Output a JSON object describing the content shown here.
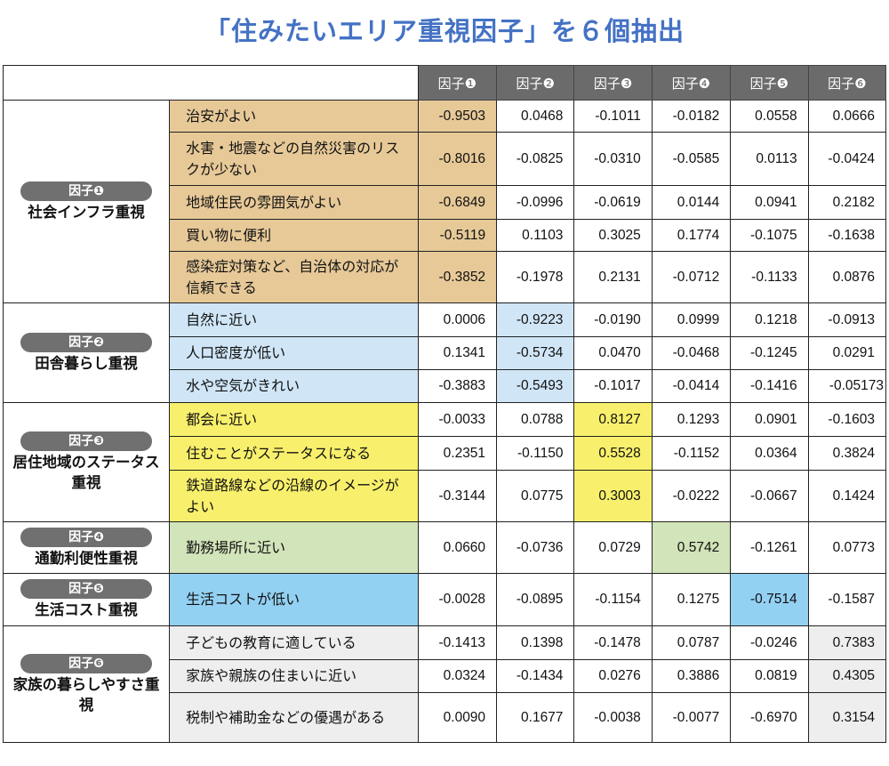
{
  "title": "「住みたいエリア重視因子」を６個抽出",
  "header": {
    "factors": [
      "因子❶",
      "因子❷",
      "因子❸",
      "因子❹",
      "因子❺",
      "因子❻"
    ]
  },
  "groups": [
    {
      "pill": "因子❶",
      "name": "社会インフラ重視",
      "color": "#e7c998",
      "rows": [
        {
          "item": "治安がよい",
          "values": [
            "-0.9503",
            "0.0468",
            "-0.1011",
            "-0.0182",
            "0.0558",
            "0.0666"
          ]
        },
        {
          "item": "水害・地震などの自然災害のリスクが少ない",
          "values": [
            "-0.8016",
            "-0.0825",
            "-0.0310",
            "-0.0585",
            "0.0113",
            "-0.0424"
          ]
        },
        {
          "item": "地域住民の雰囲気がよい",
          "values": [
            "-0.6849",
            "-0.0996",
            "-0.0619",
            "0.0144",
            "0.0941",
            "0.2182"
          ]
        },
        {
          "item": "買い物に便利",
          "values": [
            "-0.5119",
            "0.1103",
            "0.3025",
            "0.1774",
            "-0.1075",
            "-0.1638"
          ]
        },
        {
          "item": "感染症対策など、自治体の対応が信頼できる",
          "values": [
            "-0.3852",
            "-0.1978",
            "0.2131",
            "-0.0712",
            "-0.1133",
            "0.0876"
          ]
        }
      ]
    },
    {
      "pill": "因子❷",
      "name": "田舎暮らし重視",
      "color": "#d0e6f7",
      "rows": [
        {
          "item": "自然に近い",
          "values": [
            "0.0006",
            "-0.9223",
            "-0.0190",
            "0.0999",
            "0.1218",
            "-0.0913"
          ]
        },
        {
          "item": "人口密度が低い",
          "values": [
            "0.1341",
            "-0.5734",
            "0.0470",
            "-0.0468",
            "-0.1245",
            "0.0291"
          ]
        },
        {
          "item": "水や空気がきれい",
          "values": [
            "-0.3883",
            "-0.5493",
            "-0.1017",
            "-0.0414",
            "-0.1416",
            "-0.05173"
          ]
        }
      ]
    },
    {
      "pill": "因子❸",
      "name": "居住地域のステータス重視",
      "color": "#f8f06c",
      "rows": [
        {
          "item": "都会に近い",
          "values": [
            "-0.0033",
            "0.0788",
            "0.8127",
            "0.1293",
            "0.0901",
            "-0.1603"
          ]
        },
        {
          "item": "住むことがステータスになる",
          "values": [
            "0.2351",
            "-0.1150",
            "0.5528",
            "-0.1152",
            "0.0364",
            "0.3824"
          ]
        },
        {
          "item": "鉄道路線などの沿線のイメージがよい",
          "values": [
            "-0.3144",
            "0.0775",
            "0.3003",
            "-0.0222",
            "-0.0667",
            "0.1424"
          ]
        }
      ]
    },
    {
      "pill": "因子❹",
      "name": "通勤利便性重視",
      "color": "#d2e4b9",
      "rows": [
        {
          "item": "勤務場所に近い",
          "values": [
            "0.0660",
            "-0.0736",
            "0.0729",
            "0.5742",
            "-0.1261",
            "0.0773"
          ]
        }
      ]
    },
    {
      "pill": "因子❺",
      "name": "生活コスト重視",
      "color": "#93d1f3",
      "rows": [
        {
          "item": "生活コストが低い",
          "values": [
            "-0.0028",
            "-0.0895",
            "-0.1154",
            "0.1275",
            "-0.7514",
            "-0.1587"
          ]
        }
      ]
    },
    {
      "pill": "因子❻",
      "name": "家族の暮らしやすさ重視",
      "color": "#eeeeee",
      "rows": [
        {
          "item": "子どもの教育に適している",
          "values": [
            "-0.1413",
            "0.1398",
            "-0.1478",
            "0.0787",
            "-0.0246",
            "0.7383"
          ]
        },
        {
          "item": "家族や親族の住まいに近い",
          "values": [
            "0.0324",
            "-0.1434",
            "0.0276",
            "0.3886",
            "0.0819",
            "0.4305"
          ]
        },
        {
          "item": "税制や補助金などの優遇がある",
          "values": [
            "0.0090",
            "0.1677",
            "-0.0038",
            "-0.0077",
            "-0.6970",
            "0.3154"
          ]
        }
      ]
    }
  ],
  "chart_data": {
    "type": "table",
    "title": "「住みたいエリア重視因子」を６個抽出",
    "columns": [
      "因子❶",
      "因子❷",
      "因子❸",
      "因子❹",
      "因子❺",
      "因子❻"
    ],
    "row_groups": [
      "社会インフラ重視",
      "田舎暮らし重視",
      "居住地域のステータス重視",
      "通勤利便性重視",
      "生活コスト重視",
      "家族の暮らしやすさ重視"
    ],
    "rows": [
      {
        "group": "社会インフラ重視",
        "item": "治安がよい",
        "values": [
          -0.9503,
          0.0468,
          -0.1011,
          -0.0182,
          0.0558,
          0.0666
        ]
      },
      {
        "group": "社会インフラ重視",
        "item": "水害・地震などの自然災害のリスクが少ない",
        "values": [
          -0.8016,
          -0.0825,
          -0.031,
          -0.0585,
          0.0113,
          -0.0424
        ]
      },
      {
        "group": "社会インフラ重視",
        "item": "地域住民の雰囲気がよい",
        "values": [
          -0.6849,
          -0.0996,
          -0.0619,
          0.0144,
          0.0941,
          0.2182
        ]
      },
      {
        "group": "社会インフラ重視",
        "item": "買い物に便利",
        "values": [
          -0.5119,
          0.1103,
          0.3025,
          0.1774,
          -0.1075,
          -0.1638
        ]
      },
      {
        "group": "社会インフラ重視",
        "item": "感染症対策など、自治体の対応が信頼できる",
        "values": [
          -0.3852,
          -0.1978,
          0.2131,
          -0.0712,
          -0.1133,
          0.0876
        ]
      },
      {
        "group": "田舎暮らし重視",
        "item": "自然に近い",
        "values": [
          0.0006,
          -0.9223,
          -0.019,
          0.0999,
          0.1218,
          -0.0913
        ]
      },
      {
        "group": "田舎暮らし重視",
        "item": "人口密度が低い",
        "values": [
          0.1341,
          -0.5734,
          0.047,
          -0.0468,
          -0.1245,
          0.0291
        ]
      },
      {
        "group": "田舎暮らし重視",
        "item": "水や空気がきれい",
        "values": [
          -0.3883,
          -0.5493,
          -0.1017,
          -0.0414,
          -0.1416,
          -0.05173
        ]
      },
      {
        "group": "居住地域のステータス重視",
        "item": "都会に近い",
        "values": [
          -0.0033,
          0.0788,
          0.8127,
          0.1293,
          0.0901,
          -0.1603
        ]
      },
      {
        "group": "居住地域のステータス重視",
        "item": "住むことがステータスになる",
        "values": [
          0.2351,
          -0.115,
          0.5528,
          -0.1152,
          0.0364,
          0.3824
        ]
      },
      {
        "group": "居住地域のステータス重視",
        "item": "鉄道路線などの沿線のイメージがよい",
        "values": [
          -0.3144,
          0.0775,
          0.3003,
          -0.0222,
          -0.0667,
          0.1424
        ]
      },
      {
        "group": "通勤利便性重視",
        "item": "勤務場所に近い",
        "values": [
          0.066,
          -0.0736,
          0.0729,
          0.5742,
          -0.1261,
          0.0773
        ]
      },
      {
        "group": "生活コスト重視",
        "item": "生活コストが低い",
        "values": [
          -0.0028,
          -0.0895,
          -0.1154,
          0.1275,
          -0.7514,
          -0.1587
        ]
      },
      {
        "group": "家族の暮らしやすさ重視",
        "item": "子どもの教育に適している",
        "values": [
          -0.1413,
          0.1398,
          -0.1478,
          0.0787,
          -0.0246,
          0.7383
        ]
      },
      {
        "group": "家族の暮らしやすさ重視",
        "item": "家族や親族の住まいに近い",
        "values": [
          0.0324,
          -0.1434,
          0.0276,
          0.3886,
          0.0819,
          0.4305
        ]
      },
      {
        "group": "家族の暮らしやすさ重視",
        "item": "税制や補助金などの優遇がある",
        "values": [
          0.009,
          0.1677,
          -0.0038,
          -0.0077,
          -0.697,
          0.3154
        ]
      }
    ],
    "highlight": "each group's own factor column is shaded with the group color"
  }
}
